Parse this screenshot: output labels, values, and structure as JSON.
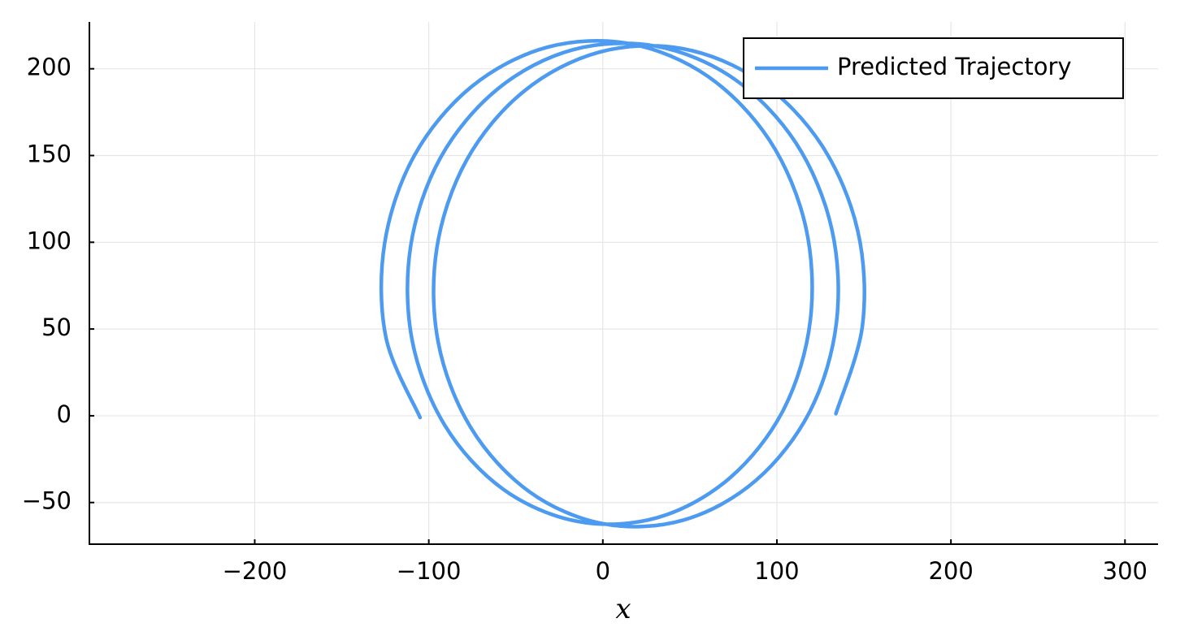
{
  "chart_data": {
    "type": "line",
    "xlabel": "x",
    "x": [
      133.9,
      149.2,
      146.5,
      125.8,
      90.4,
      45.7,
      -2.0,
      -45.4,
      -78.3,
      -95.4,
      -94.6,
      -75.8,
      -42.3,
      0.6,
      46.4,
      87.9,
      119.0,
      134.2,
      131.5,
      110.9,
      75.4,
      30.7,
      -17.1,
      -60.4,
      -93.3,
      -110.4,
      -109.6,
      -90.8,
      -57.3,
      -14.4,
      31.4,
      72.9,
      104.0,
      119.2,
      116.5,
      95.9,
      60.4,
      15.7,
      -32.0,
      -75.4,
      -108.3,
      -125.4,
      -124.6,
      -105.0
    ],
    "series": [
      {
        "name": "Predicted Trajectory",
        "color": "#4c9bf0",
        "values": [
          1.2,
          52.2,
          106.4,
          155.9,
          192.8,
          211.6,
          209.6,
          187.0,
          147.3,
          96.5,
          42.4,
          -6.9,
          -43.7,
          -62.3,
          -60.1,
          -37.3,
          2.6,
          53.6,
          107.8,
          157.3,
          194.2,
          213.0,
          211.0,
          188.4,
          148.7,
          97.9,
          43.7,
          -5.5,
          -42.3,
          -60.9,
          -58.7,
          -35.9,
          3.9,
          55.0,
          109.2,
          158.6,
          195.6,
          214.4,
          212.4,
          189.7,
          150.0,
          99.2,
          45.1,
          -1.0
        ]
      }
    ],
    "xlim": [
      -295,
      319
    ],
    "ylim": [
      -74,
      227
    ],
    "xticks": [
      {
        "value": -200,
        "label": "−200"
      },
      {
        "value": -100,
        "label": "−100"
      },
      0,
      100,
      200,
      300
    ],
    "yticks": [
      {
        "value": -50,
        "label": "−50"
      },
      0,
      50,
      100,
      150,
      200
    ],
    "grid": true,
    "legend": "top-right"
  }
}
